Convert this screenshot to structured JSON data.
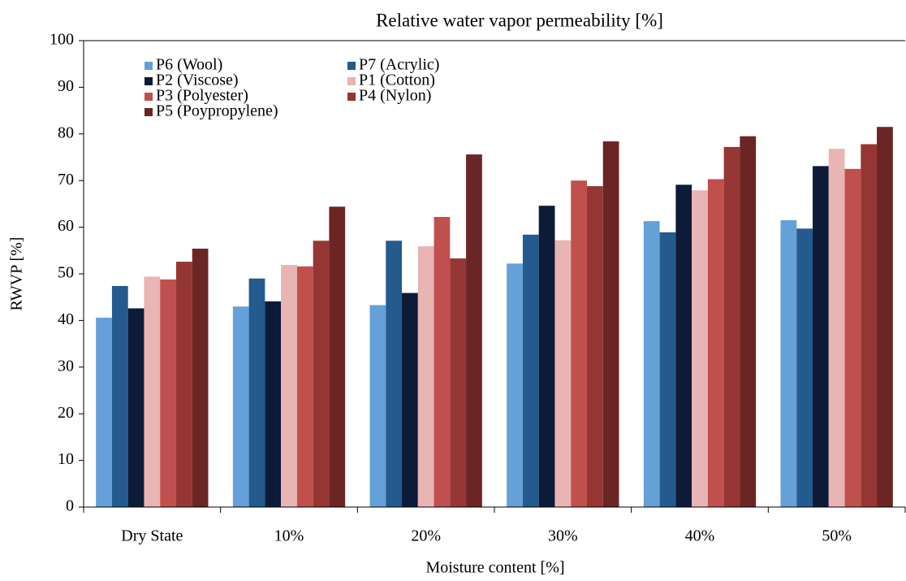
{
  "chart_data": {
    "type": "bar",
    "title": "Relative water vapor permeability [%]",
    "x_label": "Moisture content [%]",
    "y_label": "RWVP [%]",
    "categories": [
      "Dry State",
      "10%",
      "20%",
      "30%",
      "40%",
      "50%"
    ],
    "series": [
      {
        "name": "P6 (Wool)",
        "color": "#65a0d8",
        "values": [
          40.6,
          43.0,
          43.3,
          52.2,
          61.3,
          61.5
        ]
      },
      {
        "name": "P7 (Acrylic)",
        "color": "#245a8d",
        "values": [
          47.4,
          49.0,
          57.1,
          58.4,
          58.9,
          59.7
        ]
      },
      {
        "name": "P2 (Viscose)",
        "color": "#0d1a38",
        "values": [
          42.6,
          44.1,
          45.9,
          64.6,
          69.1,
          73.1
        ]
      },
      {
        "name": "P1 (Cotton)",
        "color": "#e8b4b4",
        "values": [
          49.4,
          51.9,
          55.9,
          57.2,
          67.9,
          76.8
        ]
      },
      {
        "name": "P3 (Polyester)",
        "color": "#c0504d",
        "values": [
          48.8,
          51.6,
          62.2,
          70.0,
          70.3,
          72.5
        ]
      },
      {
        "name": "P4 (Nylon)",
        "color": "#963634",
        "values": [
          52.6,
          57.1,
          53.3,
          68.8,
          77.2,
          77.8
        ]
      },
      {
        "name": "P5 (Poypropylene)",
        "color": "#6b2524",
        "values": [
          55.4,
          64.4,
          75.6,
          78.4,
          79.5,
          81.5
        ]
      }
    ],
    "ylim": [
      0,
      100
    ],
    "yticks": [
      0,
      10,
      20,
      30,
      40,
      50,
      60,
      70,
      80,
      90,
      100
    ],
    "grid": false,
    "legend": "upper left"
  }
}
